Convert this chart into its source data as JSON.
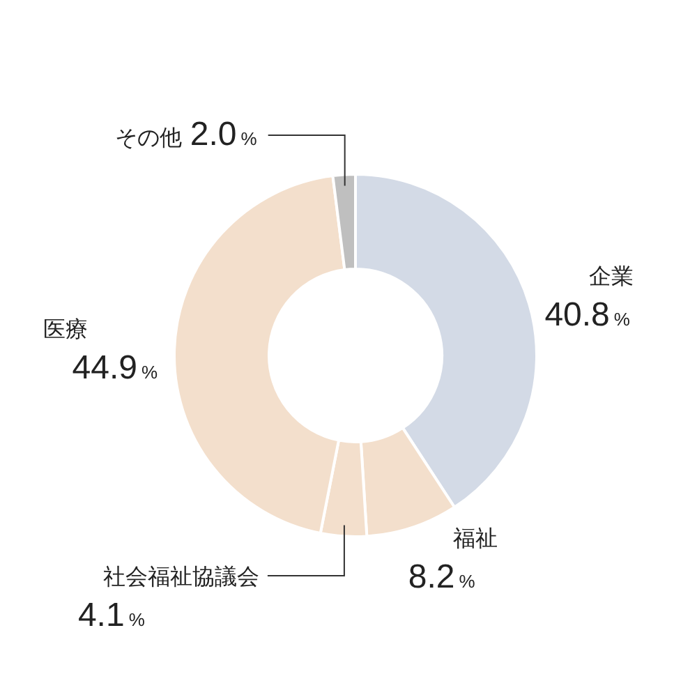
{
  "chart_data": {
    "type": "donut",
    "categories": [
      "企業",
      "福祉",
      "社会福祉協議会",
      "医療",
      "その他"
    ],
    "values": [
      40.8,
      8.2,
      4.1,
      44.9,
      2.0
    ],
    "colors": [
      "#d3dae6",
      "#f3dfcc",
      "#f3dfcc",
      "#f3dfcc",
      "#bfbfbf"
    ],
    "value_labels": [
      "40.8%",
      "8.2%",
      "4.1%",
      "44.9%",
      "2.0%"
    ],
    "legend": false
  }
}
